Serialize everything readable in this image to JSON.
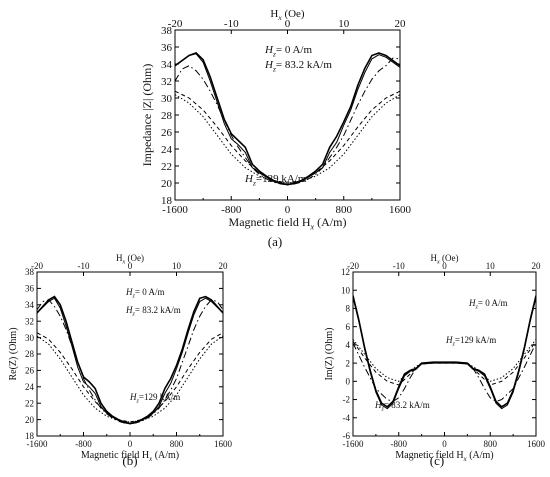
{
  "figure": {
    "panel_labels": [
      "(a)",
      "(b)",
      "(c)"
    ]
  },
  "chart_data": [
    {
      "id": "a",
      "type": "line",
      "panel_label": "(a)",
      "xlabel": "Magnetic field H_x (A/m)",
      "ylabel": "Impedance |Z| (Ohm)",
      "top_xlabel": "H_x (Oe)",
      "xlim": [
        -1600,
        1600
      ],
      "ylim": [
        18,
        38
      ],
      "xticks": [
        -1600,
        -800,
        0,
        800,
        1600
      ],
      "xtick_labels": [
        "-1600",
        "-800",
        "0",
        "800",
        "1600"
      ],
      "yticks": [
        18,
        20,
        22,
        24,
        26,
        28,
        30,
        32,
        34,
        36,
        38
      ],
      "ytick_labels": [
        "18",
        "20",
        "22",
        "24",
        "26",
        "28",
        "30",
        "32",
        "34",
        "36",
        "38"
      ],
      "top_xticks": [
        -20,
        -10,
        0,
        10,
        20
      ],
      "top_xtick_labels": [
        "-20",
        "-10",
        "0",
        "10",
        "20"
      ],
      "legend_labels": [
        "H_z= 0 A/m",
        "H_z= 83.2 kA/m",
        "H_z=129 kA/m"
      ],
      "series": [
        {
          "style": "solid",
          "x": [
            -1600,
            -1400,
            -1300,
            -1200,
            -1100,
            -1000,
            -900,
            -800,
            -700,
            -600,
            -500,
            -400,
            -300,
            -200,
            -100,
            0,
            100,
            200,
            300,
            400,
            500,
            600,
            700,
            800,
            900,
            1000,
            1100,
            1200,
            1300,
            1400,
            1600
          ],
          "y": [
            33.8,
            35.0,
            35.3,
            34.5,
            32.5,
            30.0,
            27.5,
            25.8,
            25.0,
            24.2,
            22.2,
            21.4,
            20.8,
            20.3,
            20.0,
            19.8,
            20.0,
            20.3,
            20.8,
            21.4,
            22.2,
            24.2,
            25.5,
            27.2,
            29.0,
            31.5,
            33.5,
            35.0,
            35.3,
            35.0,
            33.8
          ]
        },
        {
          "style": "solid",
          "x": [
            -1600,
            -1400,
            -1300,
            -1200,
            -1100,
            -1000,
            -900,
            -800,
            -700,
            -600,
            -500,
            -400,
            -300,
            -200,
            -100,
            0,
            100,
            200,
            300,
            400,
            500,
            600,
            700,
            800,
            900,
            1000,
            1100,
            1200,
            1300,
            1400,
            1600
          ],
          "y": [
            33.8,
            35.0,
            35.2,
            34.2,
            32.0,
            29.5,
            27.0,
            25.2,
            24.5,
            23.6,
            21.8,
            21.2,
            20.7,
            20.2,
            19.9,
            19.8,
            19.9,
            20.2,
            20.7,
            21.2,
            21.8,
            23.6,
            24.8,
            26.8,
            28.6,
            31.0,
            33.0,
            34.6,
            35.1,
            34.8,
            33.6
          ]
        },
        {
          "style": "dashdot",
          "x": [
            -1600,
            -1500,
            -1400,
            -1300,
            -1200,
            -1100,
            -1000,
            -900,
            -800,
            -700,
            -600,
            -500,
            -400,
            -300,
            -200,
            -100,
            0,
            100,
            200,
            300,
            400,
            500,
            600,
            700,
            800,
            900,
            1000,
            1100,
            1200,
            1300,
            1400,
            1500,
            1600
          ],
          "y": [
            32.0,
            33.4,
            33.8,
            33.2,
            32.2,
            30.8,
            29.2,
            27.4,
            25.6,
            24.2,
            23.0,
            21.8,
            21.0,
            20.5,
            20.1,
            19.9,
            19.8,
            19.9,
            20.1,
            20.5,
            21.0,
            21.8,
            23.0,
            24.2,
            25.6,
            27.4,
            29.2,
            30.8,
            32.2,
            33.2,
            33.8,
            34.7,
            34.6
          ]
        },
        {
          "style": "dashed",
          "x": [
            -1600,
            -1400,
            -1200,
            -1000,
            -800,
            -600,
            -400,
            -200,
            0,
            200,
            400,
            600,
            800,
            1000,
            1200,
            1400,
            1600
          ],
          "y": [
            30.8,
            30.0,
            28.6,
            26.6,
            24.4,
            22.6,
            21.2,
            20.3,
            20.0,
            20.3,
            21.2,
            22.6,
            24.4,
            26.6,
            28.6,
            30.0,
            30.8
          ]
        },
        {
          "style": "dotted",
          "x": [
            -1600,
            -1400,
            -1200,
            -1000,
            -800,
            -600,
            -400,
            -200,
            0,
            200,
            400,
            600,
            800,
            1000,
            1200,
            1400,
            1600
          ],
          "y": [
            30.4,
            29.4,
            27.8,
            25.6,
            23.4,
            21.8,
            20.8,
            20.2,
            20.0,
            20.2,
            20.8,
            21.8,
            23.4,
            25.6,
            27.8,
            29.4,
            30.4
          ]
        }
      ]
    },
    {
      "id": "b",
      "type": "line",
      "panel_label": "(b)",
      "xlabel": "Magnetic field H_x (A/m)",
      "ylabel": "Re(Z) (Ohm)",
      "top_xlabel": "H_x (Oe)",
      "xlim": [
        -1600,
        1600
      ],
      "ylim": [
        18,
        38
      ],
      "xticks": [
        -1600,
        -800,
        0,
        800,
        1600
      ],
      "xtick_labels": [
        "-1600",
        "-800",
        "0",
        "800",
        "1600"
      ],
      "yticks": [
        18,
        20,
        22,
        24,
        26,
        28,
        30,
        32,
        34,
        36,
        38
      ],
      "ytick_labels": [
        "18",
        "20",
        "22",
        "24",
        "26",
        "28",
        "30",
        "32",
        "34",
        "36",
        "38"
      ],
      "top_xticks": [
        -20,
        -10,
        0,
        10,
        20
      ],
      "top_xtick_labels": [
        "-20",
        "-10",
        "0",
        "10",
        "20"
      ],
      "legend_labels": [
        "H_z= 0 A/m",
        "H_z= 83.2 kA/m",
        "H_z=129 kA/m"
      ],
      "series": [
        {
          "style": "solid",
          "x": [
            -1600,
            -1400,
            -1300,
            -1200,
            -1100,
            -1000,
            -900,
            -800,
            -700,
            -600,
            -500,
            -400,
            -300,
            -200,
            -100,
            0,
            100,
            200,
            300,
            400,
            500,
            600,
            700,
            800,
            900,
            1000,
            1100,
            1200,
            1300,
            1400,
            1600
          ],
          "y": [
            33.0,
            34.6,
            35.0,
            34.0,
            32.0,
            29.5,
            27.0,
            25.2,
            24.6,
            23.8,
            22.0,
            21.0,
            20.4,
            20.0,
            19.7,
            19.5,
            19.7,
            20.0,
            20.4,
            21.0,
            22.0,
            23.8,
            25.0,
            26.6,
            28.6,
            31.0,
            33.2,
            34.8,
            35.0,
            34.6,
            33.0
          ]
        },
        {
          "style": "solid",
          "x": [
            -1600,
            -1400,
            -1300,
            -1200,
            -1100,
            -1000,
            -900,
            -800,
            -700,
            -600,
            -500,
            -400,
            -300,
            -200,
            -100,
            0,
            100,
            200,
            300,
            400,
            500,
            600,
            700,
            800,
            900,
            1000,
            1100,
            1200,
            1300,
            1400,
            1600
          ],
          "y": [
            33.0,
            34.4,
            34.8,
            33.6,
            31.4,
            29.0,
            26.4,
            24.6,
            24.0,
            23.2,
            21.6,
            20.8,
            20.3,
            19.9,
            19.6,
            19.5,
            19.6,
            19.9,
            20.3,
            20.8,
            21.6,
            23.2,
            24.4,
            26.2,
            28.2,
            30.6,
            32.8,
            34.4,
            34.8,
            34.4,
            33.0
          ]
        },
        {
          "style": "dashdot",
          "x": [
            -1600,
            -1500,
            -1400,
            -1300,
            -1200,
            -1100,
            -1000,
            -900,
            -800,
            -700,
            -600,
            -500,
            -400,
            -300,
            -200,
            -100,
            0,
            100,
            200,
            300,
            400,
            500,
            600,
            700,
            800,
            900,
            1000,
            1100,
            1200,
            1300,
            1400,
            1500,
            1600
          ],
          "y": [
            33.4,
            34.4,
            34.6,
            33.8,
            32.6,
            31.0,
            29.0,
            27.0,
            25.0,
            23.6,
            22.4,
            21.4,
            20.7,
            20.2,
            19.8,
            19.6,
            19.5,
            19.6,
            19.8,
            20.2,
            20.7,
            21.4,
            22.4,
            23.6,
            25.0,
            27.0,
            29.0,
            31.0,
            32.6,
            33.8,
            34.6,
            34.4,
            33.4
          ]
        },
        {
          "style": "dashed",
          "x": [
            -1600,
            -1400,
            -1200,
            -1000,
            -800,
            -600,
            -400,
            -200,
            0,
            200,
            400,
            600,
            800,
            1000,
            1200,
            1400,
            1600
          ],
          "y": [
            30.6,
            29.8,
            28.2,
            26.2,
            24.0,
            22.2,
            20.8,
            20.0,
            19.7,
            20.0,
            20.8,
            22.2,
            24.0,
            26.2,
            28.2,
            29.8,
            30.6
          ]
        },
        {
          "style": "dotted",
          "x": [
            -1600,
            -1400,
            -1200,
            -1000,
            -800,
            -600,
            -400,
            -200,
            0,
            200,
            400,
            600,
            800,
            1000,
            1200,
            1400,
            1600
          ],
          "y": [
            30.2,
            29.2,
            27.4,
            25.2,
            23.0,
            21.4,
            20.4,
            19.9,
            19.7,
            19.9,
            20.4,
            21.4,
            23.0,
            25.2,
            27.4,
            29.2,
            30.2
          ]
        }
      ]
    },
    {
      "id": "c",
      "type": "line",
      "panel_label": "(c)",
      "xlabel": "Magnetic field H_x (A/m)",
      "ylabel": "Im(Z) (Ohm)",
      "top_xlabel": "H_x (Oe)",
      "xlim": [
        -1600,
        1600
      ],
      "ylim": [
        -6,
        12
      ],
      "xticks": [
        -1600,
        -800,
        0,
        800,
        1600
      ],
      "xtick_labels": [
        "-1600",
        "-800",
        "0",
        "800",
        "1600"
      ],
      "yticks": [
        -6,
        -4,
        -2,
        0,
        2,
        4,
        6,
        8,
        10,
        12
      ],
      "ytick_labels": [
        "-6",
        "-4",
        "-2",
        "0",
        "2",
        "4",
        "6",
        "8",
        "10",
        "12"
      ],
      "top_xticks": [
        -20,
        -10,
        0,
        10,
        20
      ],
      "top_xtick_labels": [
        "-20",
        "-10",
        "0",
        "10",
        "20"
      ],
      "legend_labels": [
        "H_z= 0 A/m",
        "H_z=129 kA/m",
        "H_z= 83.2 kA/m"
      ],
      "series": [
        {
          "style": "solid",
          "x": [
            -1600,
            -1500,
            -1400,
            -1300,
            -1200,
            -1100,
            -1000,
            -900,
            -800,
            -700,
            -600,
            -500,
            -400,
            -200,
            0,
            200,
            400,
            500,
            600,
            700,
            800,
            900,
            1000,
            1100,
            1200,
            1300,
            1400,
            1500,
            1600
          ],
          "y": [
            9.4,
            6.8,
            3.8,
            1.2,
            -1.0,
            -2.4,
            -2.8,
            -2.2,
            -0.6,
            0.8,
            1.2,
            1.4,
            2.0,
            2.1,
            2.1,
            2.1,
            2.0,
            1.4,
            1.2,
            0.8,
            -0.6,
            -2.2,
            -2.8,
            -2.4,
            -1.0,
            1.2,
            3.8,
            6.8,
            9.4
          ]
        },
        {
          "style": "solid",
          "x": [
            -1600,
            -1500,
            -1400,
            -1300,
            -1200,
            -1100,
            -1000,
            -900,
            -800,
            -700,
            -600,
            -500,
            -400,
            -200,
            0,
            200,
            400,
            500,
            600,
            700,
            800,
            900,
            1000,
            1100,
            1200,
            1300,
            1400,
            1500,
            1600
          ],
          "y": [
            9.2,
            6.6,
            3.6,
            1.0,
            -1.2,
            -2.6,
            -3.0,
            -2.4,
            -0.8,
            0.6,
            1.1,
            1.3,
            1.9,
            2.0,
            2.0,
            2.0,
            1.9,
            1.3,
            1.1,
            0.6,
            -0.8,
            -2.4,
            -3.0,
            -2.6,
            -1.2,
            1.0,
            3.6,
            6.6,
            9.2
          ]
        },
        {
          "style": "dashdot",
          "x": [
            -1600,
            -1400,
            -1200,
            -1000,
            -900,
            -800,
            -700,
            -600,
            -500,
            -400,
            -200,
            0,
            200,
            400,
            500,
            600,
            700,
            800,
            900,
            1000,
            1200,
            1400,
            1600
          ],
          "y": [
            4.2,
            1.6,
            -0.8,
            -2.0,
            -2.2,
            -1.8,
            -0.8,
            0.4,
            1.4,
            2.0,
            2.1,
            2.1,
            2.1,
            2.0,
            1.4,
            0.4,
            -0.8,
            -1.8,
            -2.2,
            -2.0,
            -0.8,
            1.6,
            4.2
          ]
        },
        {
          "style": "dashed",
          "x": [
            -1600,
            -1400,
            -1200,
            -1000,
            -800,
            -700,
            -600,
            -500,
            -400,
            -200,
            0,
            200,
            400,
            500,
            600,
            700,
            800,
            1000,
            1200,
            1400,
            1600
          ],
          "y": [
            4.4,
            2.6,
            1.0,
            0.0,
            -0.4,
            0.2,
            0.8,
            1.4,
            1.9,
            2.0,
            2.0,
            2.0,
            1.9,
            1.4,
            0.8,
            0.2,
            -0.4,
            0.0,
            1.0,
            2.6,
            4.4
          ]
        },
        {
          "style": "dotted",
          "x": [
            -1600,
            -1400,
            -1200,
            -1000,
            -800,
            -700,
            -600,
            -500,
            -400,
            -200,
            0,
            200,
            400,
            500,
            600,
            700,
            800,
            1000,
            1200,
            1400,
            1600
          ],
          "y": [
            4.6,
            3.0,
            1.4,
            0.4,
            0.0,
            0.6,
            1.2,
            1.6,
            2.0,
            2.1,
            2.1,
            2.1,
            2.0,
            1.6,
            1.2,
            0.6,
            0.0,
            0.4,
            1.4,
            3.0,
            4.6
          ]
        }
      ]
    }
  ]
}
